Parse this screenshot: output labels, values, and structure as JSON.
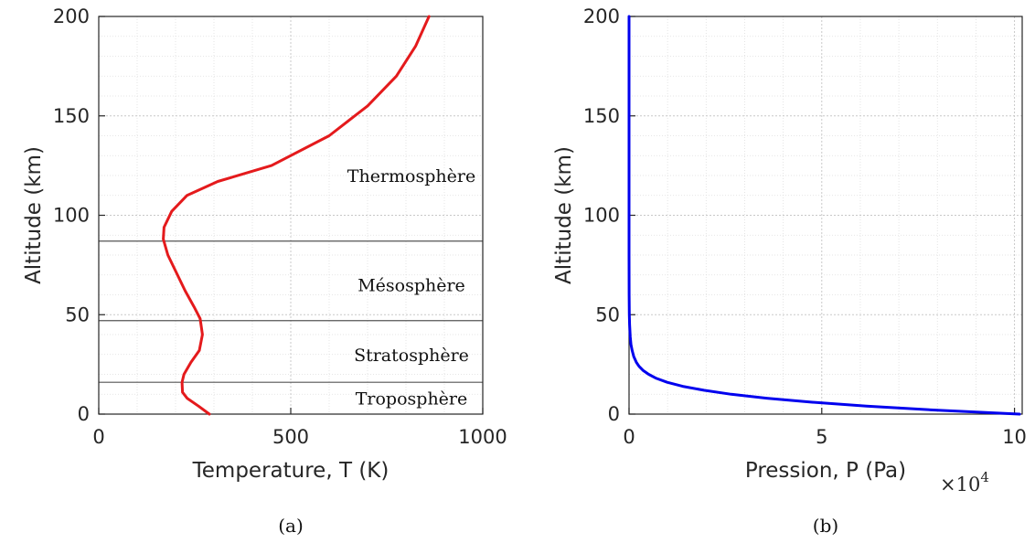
{
  "chart_data": [
    {
      "type": "line",
      "id": "a",
      "caption": "(a)",
      "xlabel": "Temperature, T (K)",
      "ylabel": "Altitude (km)",
      "xlim": [
        0,
        1000
      ],
      "ylim": [
        0,
        200
      ],
      "xticks": [
        0,
        500,
        1000
      ],
      "yticks": [
        0,
        50,
        100,
        150,
        200
      ],
      "grid": true,
      "series": [
        {
          "color": "#e41a1c",
          "x": [
            288,
            260,
            230,
            218,
            217,
            222,
            240,
            262,
            270,
            264,
            248,
            225,
            200,
            180,
            168,
            170,
            190,
            230,
            310,
            450,
            600,
            700,
            775,
            825,
            860
          ],
          "y": [
            0,
            4,
            8,
            11,
            16,
            20,
            26,
            32,
            40,
            48,
            54,
            62,
            72,
            80,
            88,
            94,
            102,
            110,
            117,
            125,
            140,
            155,
            170,
            185,
            200
          ]
        }
      ],
      "boundaries": [
        16,
        47,
        87
      ],
      "regions": [
        {
          "label": "Thermosphère",
          "y": 120
        },
        {
          "label": "Mésosphère",
          "y": 65
        },
        {
          "label": "Stratosphère",
          "y": 30
        },
        {
          "label": "Troposphère",
          "y": 8
        }
      ]
    },
    {
      "type": "line",
      "id": "b",
      "caption": "(b)",
      "xlabel": "Pression, P (Pa)",
      "ylabel": "Altitude (km)",
      "xlim": [
        0,
        10.2
      ],
      "ylim": [
        0,
        200
      ],
      "xticks": [
        0,
        5,
        10
      ],
      "yticks": [
        0,
        50,
        100,
        150,
        200
      ],
      "x_multiplier": "×10",
      "x_multiplier_exp": "4",
      "grid": true,
      "series": [
        {
          "color": "#0000ee",
          "x": [
            10.13,
            7.95,
            6.16,
            4.72,
            3.57,
            2.65,
            1.94,
            1.39,
            0.99,
            0.71,
            0.51,
            0.36,
            0.26,
            0.19,
            0.12,
            0.08,
            0.05,
            0.03,
            0.015,
            0.008,
            0.003,
            0.001,
            0.0,
            0.0
          ],
          "y": [
            0,
            2,
            4,
            6,
            8,
            10,
            12,
            14,
            16,
            18,
            20,
            22,
            24,
            26,
            29,
            32,
            35,
            39,
            45,
            50,
            60,
            80,
            120,
            200
          ]
        }
      ]
    }
  ]
}
